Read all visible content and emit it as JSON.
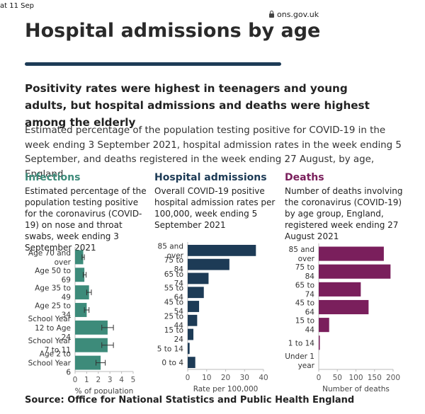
{
  "status_bar": {
    "time": "at 11 Sep",
    "url": "ons.gov.uk"
  },
  "page_title": "Hospital admissions by age",
  "headline": "Positivity rates were highest in teenagers and young adults, but hospital admissions and deaths were highest among the elderly",
  "description": "Estimated percentage of the population testing positive for COVID-19 in the week ending 3 September 2021, hospital admission rates in the week ending 5 September, and deaths registered in the week ending 27 August, by age, England",
  "source": "Source: Office for National Statistics and Public Health England",
  "colors": {
    "infections": "#3d8b7a",
    "hospital": "#1d3b56",
    "deaths": "#7a1f5c",
    "rule": "#1d3b56"
  },
  "chart_data": [
    {
      "type": "bar",
      "orientation": "horizontal",
      "title": "Infections",
      "subtitle": "Estimated percentage of the population testing positive for the coronavirus (COVID-19) on nose and throat swabs, week ending 3 September 2021",
      "categories": [
        "Age 70 and over",
        "Age 50 to 69",
        "Age 35 to 49",
        "Age 25 to 34",
        "School Year 12 to Age 24",
        "School Year 7 to 11",
        "Age 2 to School Year 6"
      ],
      "values": [
        0.7,
        0.8,
        1.2,
        1.0,
        2.8,
        2.8,
        2.2
      ],
      "error_low": [
        0.6,
        0.7,
        1.0,
        0.8,
        2.3,
        2.3,
        1.8
      ],
      "error_high": [
        0.8,
        0.95,
        1.4,
        1.2,
        3.3,
        3.3,
        2.6
      ],
      "xlim": [
        0,
        5
      ],
      "xticks": [
        0,
        1,
        2,
        3,
        4,
        5
      ],
      "xlabel": "% of population"
    },
    {
      "type": "bar",
      "orientation": "horizontal",
      "title": "Hospital admissions",
      "subtitle": "Overall COVID-19 positive hospital admission rates per 100,000, week ending 5 September 2021",
      "categories": [
        "85 and over",
        "75 to 84",
        "65 to 74",
        "55 to 64",
        "45 to 54",
        "25 to 44",
        "15 to 24",
        "5 to 14",
        "0 to 4"
      ],
      "values": [
        36,
        22,
        11,
        8.5,
        6,
        5,
        3,
        1,
        4
      ],
      "xlim": [
        0,
        40
      ],
      "xticks": [
        0,
        10,
        20,
        30,
        40
      ],
      "xlabel": "Rate per 100,000"
    },
    {
      "type": "bar",
      "orientation": "horizontal",
      "title": "Deaths",
      "subtitle": "Number of deaths involving the coronavirus (COVID-19) by age group, England, registered week ending 27 August 2021",
      "categories": [
        "85 and over",
        "75 to 84",
        "65 to 74",
        "45 to 64",
        "15 to 44",
        "1 to 14",
        "Under 1 year"
      ],
      "values": [
        175,
        193,
        113,
        134,
        28,
        1,
        0
      ],
      "xlim": [
        0,
        200
      ],
      "xticks": [
        0,
        50,
        100,
        150,
        200
      ],
      "xlabel": "Number of deaths"
    }
  ]
}
